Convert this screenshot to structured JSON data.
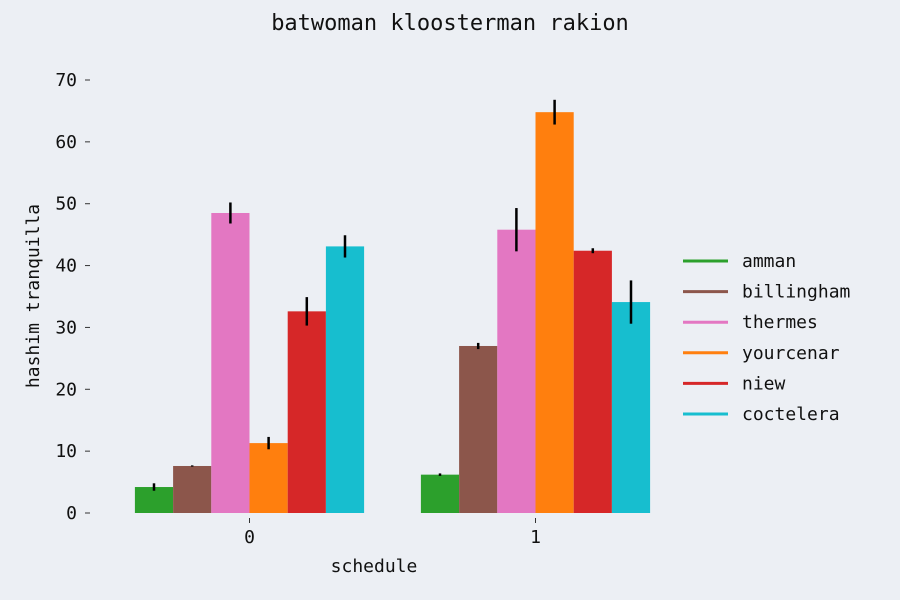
{
  "chart_data": {
    "type": "bar",
    "title": "batwoman kloosterman rakion",
    "xlabel": "schedule",
    "ylabel": "hashim tranquilla",
    "categories": [
      "0",
      "1"
    ],
    "ylim": [
      0,
      70
    ],
    "yticks": [
      0,
      10,
      20,
      30,
      40,
      50,
      60,
      70
    ],
    "grid": false,
    "legend_position": "right",
    "series": [
      {
        "name": "amman",
        "color": "#2ca02c",
        "values": [
          4.2,
          6.2
        ],
        "errors": [
          0.6,
          0.2
        ]
      },
      {
        "name": "billingham",
        "color": "#8c564b",
        "values": [
          7.6,
          27.0
        ],
        "errors": [
          0.1,
          0.5
        ]
      },
      {
        "name": "thermes",
        "color": "#e377c2",
        "values": [
          48.5,
          45.8
        ],
        "errors": [
          1.7,
          3.5
        ]
      },
      {
        "name": "yourcenar",
        "color": "#ff7f0e",
        "values": [
          11.3,
          64.8
        ],
        "errors": [
          1.0,
          2.0
        ]
      },
      {
        "name": "niew",
        "color": "#d62728",
        "values": [
          32.6,
          42.4
        ],
        "errors": [
          2.3,
          0.4
        ]
      },
      {
        "name": "coctelera",
        "color": "#17becf",
        "values": [
          43.1,
          34.1
        ],
        "errors": [
          1.8,
          3.5
        ]
      }
    ]
  }
}
